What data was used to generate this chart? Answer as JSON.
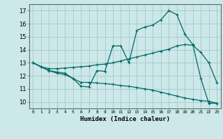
{
  "bg_color": "#cce8e8",
  "grid_color": "#aacccc",
  "line_color": "#006666",
  "xlabel": "Humidex (Indice chaleur)",
  "xlim": [
    -0.5,
    23.5
  ],
  "ylim": [
    9.5,
    17.5
  ],
  "yticks": [
    10,
    11,
    12,
    13,
    14,
    15,
    16,
    17
  ],
  "xtick_labels": [
    "0",
    "1",
    "2",
    "3",
    "4",
    "5",
    "6",
    "7",
    "8",
    "9",
    "10",
    "11",
    "12",
    "13",
    "14",
    "15",
    "16",
    "17",
    "18",
    "19",
    "20",
    "21",
    "22",
    "23"
  ],
  "curve_top": {
    "x": [
      0,
      1,
      2,
      3,
      4,
      5,
      6,
      7,
      8,
      9,
      10,
      11,
      12,
      13,
      14,
      15,
      16,
      17,
      18,
      19,
      20,
      21,
      22,
      23
    ],
    "y": [
      13.0,
      12.7,
      12.4,
      12.3,
      12.2,
      11.8,
      11.2,
      11.15,
      12.4,
      12.35,
      14.3,
      14.3,
      13.0,
      15.5,
      15.75,
      15.9,
      16.3,
      17.0,
      16.7,
      15.2,
      14.4,
      11.8,
      9.9,
      9.9
    ]
  },
  "curve_mid": {
    "x": [
      0,
      1,
      2,
      3,
      4,
      5,
      6,
      7,
      8,
      9,
      10,
      11,
      12,
      13,
      14,
      15,
      16,
      17,
      18,
      19,
      20,
      21,
      22,
      23
    ],
    "y": [
      13.0,
      12.7,
      12.55,
      12.55,
      12.6,
      12.65,
      12.7,
      12.75,
      12.85,
      12.9,
      13.0,
      13.15,
      13.3,
      13.45,
      13.6,
      13.75,
      13.9,
      14.05,
      14.3,
      14.4,
      14.35,
      13.8,
      13.0,
      11.5
    ]
  },
  "curve_bot": {
    "x": [
      0,
      1,
      2,
      3,
      4,
      5,
      6,
      7,
      8,
      9,
      10,
      11,
      12,
      13,
      14,
      15,
      16,
      17,
      18,
      19,
      20,
      21,
      22,
      23
    ],
    "y": [
      13.0,
      12.7,
      12.4,
      12.2,
      12.1,
      11.8,
      11.5,
      11.5,
      11.45,
      11.4,
      11.35,
      11.25,
      11.2,
      11.1,
      11.0,
      10.9,
      10.75,
      10.6,
      10.45,
      10.3,
      10.2,
      10.1,
      10.05,
      9.9
    ]
  }
}
